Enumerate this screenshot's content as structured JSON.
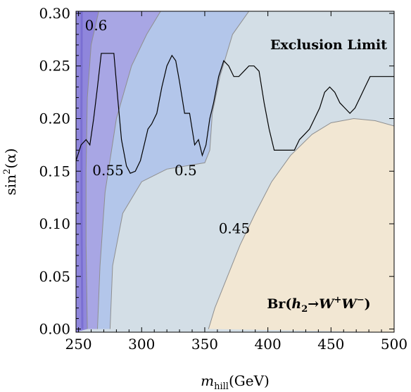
{
  "chart_data": {
    "type": "contour",
    "xlabel_main": "m",
    "xlabel_sub": "hill",
    "xlabel_unit": "(GeV)",
    "ylabel_main": "sin",
    "ylabel_sup": "2",
    "ylabel_arg": "(α)",
    "xlim": [
      248,
      500
    ],
    "ylim": [
      -0.003,
      0.302
    ],
    "x_ticks": [
      250,
      300,
      350,
      400,
      450,
      500
    ],
    "x_tick_labels": [
      "250",
      "300",
      "350",
      "400",
      "450",
      "500"
    ],
    "y_ticks": [
      0.0,
      0.05,
      0.1,
      0.15,
      0.2,
      0.25,
      0.3
    ],
    "y_tick_labels": [
      "0.00",
      "0.05",
      "0.10",
      "0.15",
      "0.20",
      "0.25",
      "0.30"
    ],
    "annotations": {
      "exclusion": "Exclusion Limit",
      "branching_prefix": "Br(",
      "branching_h": "h",
      "branching_h_sub": "2",
      "branching_arrow": "→",
      "branching_w1": "W",
      "branching_w1_sup": "+",
      "branching_w2": "W",
      "branching_w2_sup": "−",
      "branching_suffix": ")"
    },
    "contour_levels": [
      {
        "value": "0.6",
        "label_at": [
          255,
          0.284
        ]
      },
      {
        "value": "0.55",
        "label_at": [
          261,
          0.146
        ]
      },
      {
        "value": "0.5",
        "label_at": [
          326,
          0.146
        ]
      },
      {
        "value": "0.45",
        "label_at": [
          361,
          0.091
        ]
      }
    ],
    "regions": [
      {
        "name": "br-above-0.6",
        "color": "#8f86dc"
      },
      {
        "name": "br-0.55-0.6",
        "color": "#a8a6e4"
      },
      {
        "name": "br-0.5-0.55",
        "color": "#b3c6ea"
      },
      {
        "name": "br-0.45-0.5",
        "color": "#d3dee6"
      },
      {
        "name": "br-below-0.45",
        "color": "#f2e7d3"
      }
    ],
    "boundaries": {
      "b06": [
        [
          252.5,
          0.302
        ],
        [
          252.3,
          0.2
        ],
        [
          252.4,
          0.1
        ],
        [
          253,
          0.0
        ]
      ],
      "b055": [
        [
          266,
          0.302
        ],
        [
          260,
          0.27
        ],
        [
          257,
          0.22
        ],
        [
          256,
          0.15
        ],
        [
          256,
          0.08
        ],
        [
          257,
          0.0
        ]
      ],
      "b05_top": [
        [
          315,
          0.302
        ],
        [
          304,
          0.28
        ],
        [
          292,
          0.25
        ],
        [
          280,
          0.2
        ],
        [
          271,
          0.13
        ],
        [
          267,
          0.06
        ],
        [
          265,
          0.0
        ]
      ],
      "b05_bottom": [
        [
          385,
          0.302
        ],
        [
          372,
          0.28
        ],
        [
          362,
          0.24
        ],
        [
          356,
          0.205
        ],
        [
          354,
          0.17
        ],
        [
          350,
          0.158
        ],
        [
          320,
          0.152
        ],
        [
          300,
          0.14
        ],
        [
          285,
          0.11
        ],
        [
          277,
          0.06
        ],
        [
          275,
          0.0
        ]
      ],
      "b045": [
        [
          353,
          0.0
        ],
        [
          358,
          0.02
        ],
        [
          368,
          0.05
        ],
        [
          378,
          0.08
        ],
        [
          390,
          0.11
        ],
        [
          403,
          0.14
        ],
        [
          418,
          0.165
        ],
        [
          435,
          0.185
        ],
        [
          450,
          0.196
        ],
        [
          468,
          0.2
        ],
        [
          485,
          0.198
        ],
        [
          500,
          0.193
        ]
      ]
    },
    "exclusion_limit": {
      "x": [
        248,
        252,
        256,
        259,
        262,
        265,
        268,
        271,
        274,
        278,
        281,
        284,
        288,
        291,
        295,
        299,
        302,
        305,
        308,
        312,
        316,
        320,
        324,
        327,
        330,
        334,
        338,
        342,
        345,
        348,
        351,
        354,
        357,
        361,
        365,
        369,
        373,
        377,
        381,
        385,
        389,
        393,
        397,
        401,
        405,
        409,
        413,
        417,
        421,
        425,
        429,
        433,
        437,
        441,
        445,
        449,
        453,
        457,
        461,
        465,
        469,
        473,
        477,
        481,
        485,
        489,
        493,
        497,
        500
      ],
      "y": [
        0.16,
        0.175,
        0.18,
        0.175,
        0.2,
        0.23,
        0.262,
        0.262,
        0.262,
        0.262,
        0.22,
        0.18,
        0.155,
        0.148,
        0.15,
        0.16,
        0.175,
        0.19,
        0.195,
        0.205,
        0.23,
        0.25,
        0.26,
        0.255,
        0.235,
        0.205,
        0.205,
        0.175,
        0.18,
        0.165,
        0.175,
        0.2,
        0.215,
        0.24,
        0.255,
        0.25,
        0.24,
        0.24,
        0.245,
        0.25,
        0.25,
        0.245,
        0.215,
        0.19,
        0.17,
        0.17,
        0.17,
        0.17,
        0.17,
        0.18,
        0.185,
        0.19,
        0.2,
        0.21,
        0.225,
        0.23,
        0.225,
        0.215,
        0.21,
        0.205,
        0.21,
        0.22,
        0.23,
        0.24,
        0.24,
        0.24,
        0.24,
        0.24,
        0.24
      ]
    }
  }
}
